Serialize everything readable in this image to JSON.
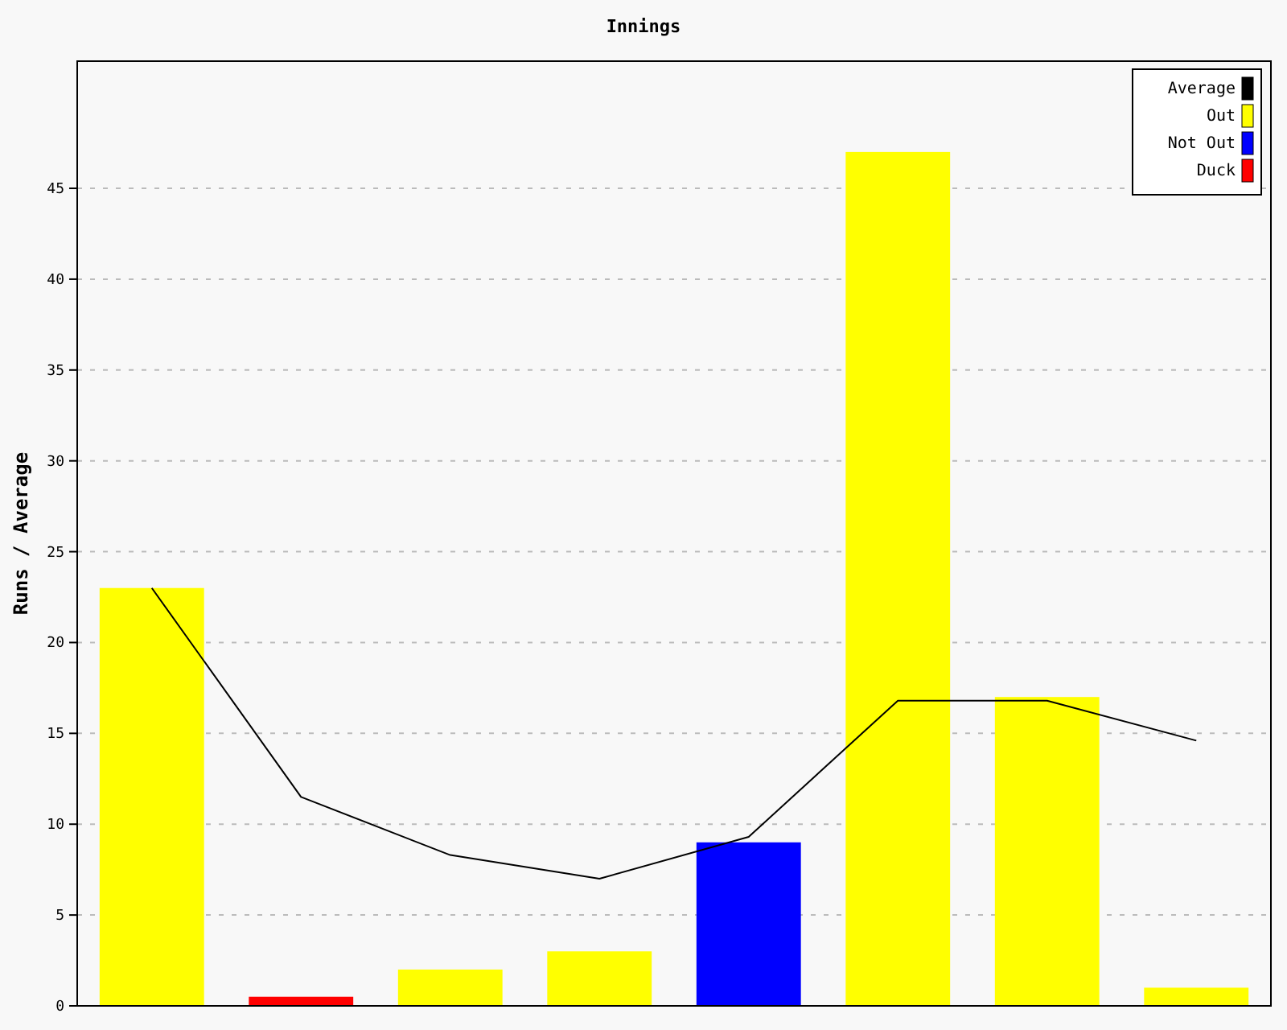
{
  "chart_data": {
    "type": "bar",
    "title": "Innings",
    "ylabel": "Runs / Average",
    "categories": [
      null,
      null,
      null,
      null,
      null,
      null,
      null,
      null
    ],
    "series": [
      {
        "name": "Average",
        "type": "line",
        "color": "#000000",
        "values": [
          23,
          11.5,
          8.3,
          7,
          9.3,
          16.8,
          16.8,
          14.6
        ]
      },
      {
        "name": "Out",
        "color": "#ffff00",
        "values": [
          23,
          null,
          2,
          3,
          null,
          47,
          17,
          1
        ]
      },
      {
        "name": "Not Out",
        "color": "#0000ff",
        "values": [
          null,
          null,
          null,
          null,
          9,
          null,
          null,
          null
        ]
      },
      {
        "name": "Duck",
        "color": "#ff0000",
        "values": [
          null,
          0.5,
          null,
          null,
          null,
          null,
          null,
          null
        ]
      }
    ],
    "ylim": [
      0,
      52
    ],
    "yticks": [
      0,
      5,
      10,
      15,
      20,
      25,
      30,
      35,
      40,
      45
    ],
    "grid": "y",
    "legend": "top right"
  }
}
